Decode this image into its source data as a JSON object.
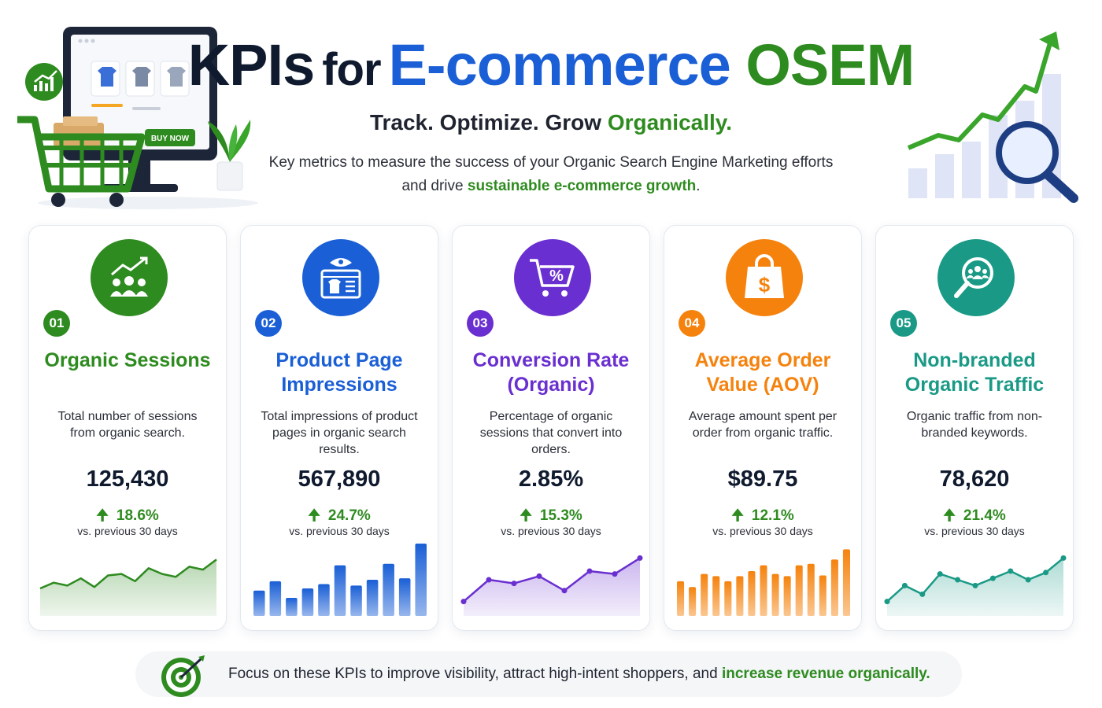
{
  "header": {
    "title_kpis": "KPIs",
    "title_for": "for",
    "title_ecommerce": "E-commerce",
    "title_osem": "OSEM",
    "subtitle_main": "Track. Optimize. Grow",
    "subtitle_accent": "Organically.",
    "intro_line1": "Key metrics to measure the success of your Organic Search Engine Marketing efforts",
    "intro_line2_prefix": "and drive",
    "intro_line2_accent": "sustainable e-commerce growth",
    "intro_line2_suffix": ".",
    "illustration_button": "BUY NOW"
  },
  "colors": {
    "green": "#2e8b1f",
    "blue": "#1a5fd6",
    "purple": "#6a2fd0",
    "orange": "#f5820d",
    "teal": "#1a9a86"
  },
  "cards": [
    {
      "number": "01",
      "title": "Organic Sessions",
      "description": "Total number of sessions from organic search.",
      "value": "125,430",
      "change": "18.6%",
      "compare": "vs. previous 30 days",
      "icon": "sessions-growth-icon",
      "color": "#2e8b1f",
      "chart_type": "area",
      "trend": [
        38,
        46,
        42,
        52,
        40,
        56,
        58,
        48,
        66,
        58,
        54,
        68,
        64,
        78
      ]
    },
    {
      "number": "02",
      "title": "Product Page Impressions",
      "description": "Total impressions of product pages in organic search results.",
      "value": "567,890",
      "change": "24.7%",
      "compare": "vs. previous 30 days",
      "icon": "product-page-icon",
      "color": "#1a5fd6",
      "chart_type": "bar",
      "trend": [
        35,
        48,
        25,
        38,
        44,
        70,
        42,
        50,
        72,
        52,
        100
      ]
    },
    {
      "number": "03",
      "title": "Conversion Rate (Organic)",
      "description": "Percentage of organic sessions that convert into orders.",
      "value": "2.85%",
      "change": "15.3%",
      "compare": "vs. previous 30 days",
      "icon": "cart-percent-icon",
      "color": "#6a2fd0",
      "chart_type": "line",
      "trend": [
        20,
        50,
        45,
        55,
        35,
        62,
        58,
        80
      ]
    },
    {
      "number": "04",
      "title": "Average Order Value (AOV)",
      "description": "Average amount spent per order from organic traffic.",
      "value": "$89.75",
      "change": "12.1%",
      "compare": "vs. previous 30 days",
      "icon": "dollar-bag-icon",
      "color": "#f5820d",
      "chart_type": "bar",
      "trend": [
        48,
        40,
        58,
        55,
        48,
        55,
        62,
        70,
        58,
        55,
        70,
        72,
        56,
        78,
        92
      ]
    },
    {
      "number": "05",
      "title": "Non-branded Organic Traffic",
      "description": "Organic traffic from non-branded keywords.",
      "value": "78,620",
      "change": "21.4%",
      "compare": "vs. previous 30 days",
      "icon": "audience-search-icon",
      "color": "#1a9a86",
      "chart_type": "area",
      "trend": [
        20,
        42,
        30,
        58,
        50,
        42,
        52,
        62,
        50,
        60,
        80
      ]
    }
  ],
  "footer": {
    "text_prefix": "Focus on these KPIs to improve visibility, attract high-intent shoppers, and",
    "text_accent": "increase revenue organically."
  }
}
